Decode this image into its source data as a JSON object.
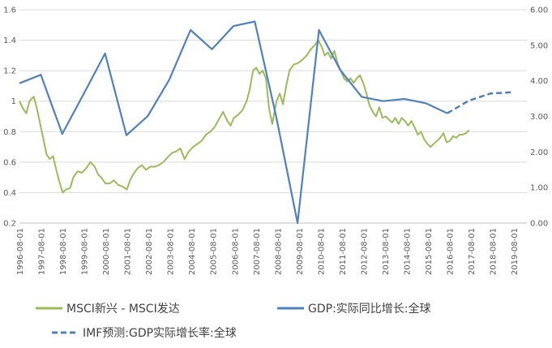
{
  "chart_data": {
    "type": "line",
    "grid": "horizontal",
    "legend_position": "bottom",
    "x_tick_labels": [
      "1996-08-01",
      "1997-08-01",
      "1998-08-01",
      "1999-08-01",
      "2000-08-01",
      "2001-08-01",
      "2002-08-01",
      "2003-08-01",
      "2004-08-01",
      "2005-08-01",
      "2006-08-01",
      "2007-08-01",
      "2008-08-01",
      "2009-08-01",
      "2010-08-01",
      "2011-08-01",
      "2012-08-01",
      "2013-08-01",
      "2014-08-01",
      "2015-08-01",
      "2016-08-01",
      "2017-08-01",
      "2018-08-01",
      "2019-08-01"
    ],
    "y_left": {
      "ylim": [
        0.2,
        1.6
      ],
      "ticks": [
        "0.2",
        "0.4",
        "0.6",
        "0.8",
        "1",
        "1.2",
        "1.4",
        "1.6"
      ]
    },
    "y_right": {
      "ylim": [
        0,
        6
      ],
      "ticks": [
        "0.00",
        "1.00",
        "2.00",
        "3.00",
        "4.00",
        "5.00",
        "6.00"
      ]
    },
    "series": [
      {
        "name": "MSCI新兴 - MSCI发达",
        "axis": "left",
        "color": "#9BBB59",
        "style": "solid",
        "x": [
          1996.58,
          1996.75,
          1996.9,
          1997.05,
          1997.25,
          1997.4,
          1997.55,
          1997.7,
          1997.85,
          1998.0,
          1998.15,
          1998.3,
          1998.45,
          1998.6,
          1998.75,
          1998.95,
          1999.1,
          1999.3,
          1999.5,
          1999.7,
          1999.9,
          2000.1,
          2000.25,
          2000.4,
          2000.6,
          2000.8,
          2001.0,
          2001.2,
          2001.4,
          2001.6,
          2001.75,
          2001.9,
          2002.1,
          2002.3,
          2002.5,
          2002.7,
          2002.9,
          2003.1,
          2003.3,
          2003.5,
          2003.7,
          2003.9,
          2004.1,
          2004.3,
          2004.5,
          2004.7,
          2004.9,
          2005.1,
          2005.3,
          2005.5,
          2005.7,
          2005.9,
          2006.1,
          2006.3,
          2006.45,
          2006.6,
          2006.8,
          2007.0,
          2007.2,
          2007.35,
          2007.5,
          2007.65,
          2007.8,
          2007.95,
          2008.1,
          2008.25,
          2008.4,
          2008.5,
          2008.6,
          2008.75,
          2008.9,
          2009.05,
          2009.2,
          2009.4,
          2009.6,
          2009.8,
          2010.0,
          2010.2,
          2010.4,
          2010.55,
          2010.7,
          2010.85,
          2011.0,
          2011.15,
          2011.3,
          2011.45,
          2011.6,
          2011.75,
          2011.9,
          2012.05,
          2012.2,
          2012.35,
          2012.5,
          2012.65,
          2012.8,
          2012.95,
          2013.1,
          2013.25,
          2013.4,
          2013.55,
          2013.7,
          2013.85,
          2014.0,
          2014.15,
          2014.3,
          2014.45,
          2014.6,
          2014.75,
          2014.9,
          2015.05,
          2015.2,
          2015.35,
          2015.5,
          2015.65,
          2015.8,
          2015.95,
          2016.1,
          2016.25,
          2016.4,
          2016.55,
          2016.7,
          2016.85,
          2017.0,
          2017.15,
          2017.3,
          2017.45,
          2017.6
        ],
        "values": [
          1.0,
          0.95,
          0.92,
          1.0,
          1.03,
          0.95,
          0.85,
          0.75,
          0.65,
          0.62,
          0.64,
          0.55,
          0.47,
          0.4,
          0.42,
          0.43,
          0.5,
          0.54,
          0.53,
          0.56,
          0.6,
          0.57,
          0.52,
          0.5,
          0.46,
          0.46,
          0.48,
          0.45,
          0.44,
          0.42,
          0.48,
          0.52,
          0.56,
          0.58,
          0.55,
          0.57,
          0.57,
          0.58,
          0.6,
          0.63,
          0.66,
          0.67,
          0.69,
          0.62,
          0.67,
          0.7,
          0.72,
          0.74,
          0.78,
          0.8,
          0.83,
          0.88,
          0.93,
          0.87,
          0.84,
          0.89,
          0.91,
          0.94,
          1.0,
          1.08,
          1.2,
          1.22,
          1.18,
          1.2,
          1.15,
          0.95,
          0.85,
          0.93,
          1.0,
          1.05,
          0.98,
          1.1,
          1.2,
          1.24,
          1.25,
          1.27,
          1.3,
          1.34,
          1.37,
          1.4,
          1.36,
          1.3,
          1.32,
          1.28,
          1.33,
          1.25,
          1.2,
          1.15,
          1.13,
          1.15,
          1.12,
          1.15,
          1.17,
          1.12,
          1.05,
          0.97,
          0.93,
          0.9,
          0.96,
          0.89,
          0.9,
          0.88,
          0.86,
          0.89,
          0.85,
          0.89,
          0.87,
          0.84,
          0.87,
          0.83,
          0.78,
          0.8,
          0.75,
          0.72,
          0.7,
          0.72,
          0.74,
          0.76,
          0.79,
          0.73,
          0.74,
          0.77,
          0.76,
          0.78,
          0.78,
          0.79,
          0.81
        ]
      },
      {
        "name": "GDP:实际同比增长:全球",
        "axis": "right",
        "color": "#4F81BD",
        "style": "solid",
        "x": [
          1996.58,
          1997.58,
          1998.58,
          1999.58,
          2000.58,
          2001.58,
          2002.58,
          2003.58,
          2004.58,
          2005.58,
          2006.58,
          2007.58,
          2008.58,
          2009.58,
          2010.58,
          2011.58,
          2012.58,
          2013.58,
          2014.58,
          2015.58,
          2016.58
        ],
        "values": [
          3.93,
          4.17,
          2.51,
          3.63,
          4.77,
          2.47,
          3.01,
          4.03,
          5.43,
          4.89,
          5.54,
          5.67,
          3.0,
          0.0,
          5.43,
          4.3,
          3.55,
          3.43,
          3.49,
          3.37,
          3.09
        ]
      },
      {
        "name": "IMF预测:GDP实际增长率:全球",
        "axis": "right",
        "color": "#4F81BD",
        "style": "dashed",
        "x": [
          2016.58,
          2017.58,
          2018.58,
          2019.58
        ],
        "values": [
          3.09,
          3.44,
          3.64,
          3.68
        ]
      }
    ]
  }
}
